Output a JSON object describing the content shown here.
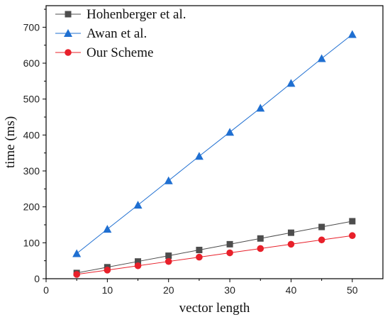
{
  "chart_data": {
    "type": "line",
    "title": "",
    "xlabel": "vector length",
    "ylabel": "time (ms)",
    "xlim": [
      0,
      55
    ],
    "ylim": [
      0,
      760
    ],
    "xticks": [
      0,
      10,
      20,
      30,
      40,
      50
    ],
    "yticks": [
      0,
      100,
      200,
      300,
      400,
      500,
      600,
      700
    ],
    "grid": false,
    "legend_position": "top-left",
    "x": [
      5,
      10,
      15,
      20,
      25,
      30,
      35,
      40,
      45,
      50
    ],
    "series": [
      {
        "name": "Hohenberger et al.",
        "marker": "square",
        "color": "#4d4d4d",
        "values": [
          16,
          32,
          48,
          64,
          80,
          96,
          112,
          128,
          144,
          160
        ]
      },
      {
        "name": "Awan et al.",
        "marker": "triangle",
        "color": "#1f6fd1",
        "values": [
          70,
          138,
          205,
          273,
          341,
          408,
          475,
          544,
          613,
          680
        ]
      },
      {
        "name": "Our Scheme",
        "marker": "circle",
        "color": "#e8202a",
        "values": [
          12,
          24,
          36,
          48,
          60,
          72,
          84,
          96,
          108,
          120
        ]
      }
    ]
  }
}
